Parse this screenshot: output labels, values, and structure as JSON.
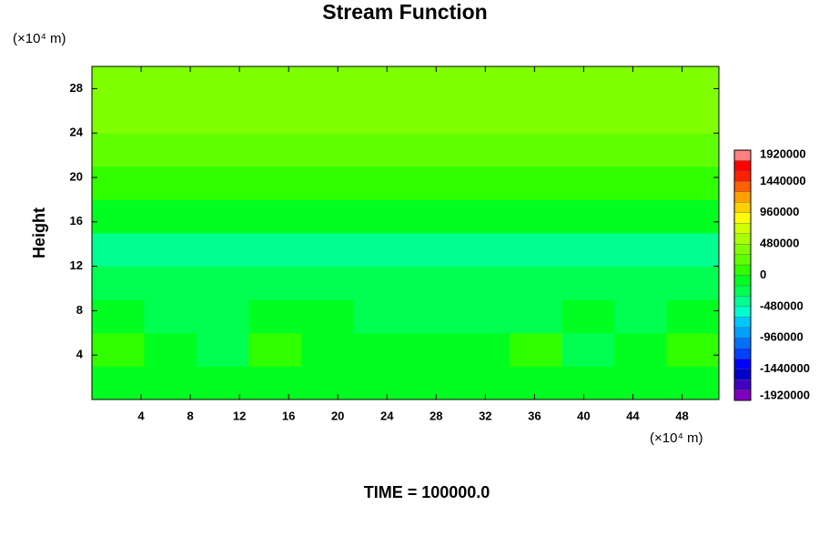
{
  "chart_data": {
    "type": "contour",
    "title": "Stream Function",
    "y_label": "Height",
    "y_unit": "(×10⁴ m)",
    "x_unit": "(×10⁴ m)",
    "footer": "TIME = 100000.0",
    "xlim": [
      0,
      51
    ],
    "ylim": [
      0,
      30
    ],
    "xticks": [
      4,
      8,
      12,
      16,
      20,
      24,
      28,
      32,
      36,
      40,
      44,
      48
    ],
    "yticks": [
      4,
      8,
      12,
      16,
      20,
      24,
      28
    ],
    "clim": [
      -1920000,
      1920000
    ],
    "clevel_step": 160000,
    "colorbar_ticks": [
      1920000,
      1440000,
      960000,
      480000,
      0,
      -480000,
      -960000,
      -1440000,
      -1920000
    ],
    "colors": [
      "#7f00bf",
      "#4000c0",
      "#0000c8",
      "#0000ff",
      "#0040ff",
      "#0070ff",
      "#00a0ff",
      "#00c8ff",
      "#00ffd0",
      "#00ff90",
      "#00ff50",
      "#00ff20",
      "#30ff00",
      "#60ff00",
      "#80ff00",
      "#a8ff00",
      "#d0ff00",
      "#ffff00",
      "#ffd000",
      "#ffa000",
      "#ff6000",
      "#ff2000",
      "#ff0000",
      "#ff8080"
    ],
    "field": [
      [
        -80000,
        -80000,
        -160000,
        -80000,
        -80000,
        -80000,
        -80000,
        -80000,
        -80000,
        -80000,
        -160000,
        -80000
      ],
      [
        80000,
        -80000,
        -240000,
        80000,
        -80000,
        -80000,
        -80000,
        -80000,
        80000,
        -320000,
        -80000,
        80000
      ],
      [
        -160000,
        -320000,
        -240000,
        -160000,
        -160000,
        -240000,
        -240000,
        -320000,
        -240000,
        -160000,
        -240000,
        -160000
      ],
      [
        -320000,
        -320000,
        -240000,
        -240000,
        -320000,
        -320000,
        -320000,
        -320000,
        -320000,
        -320000,
        -320000,
        -320000
      ],
      [
        -400000,
        -400000,
        -400000,
        -400000,
        -400000,
        -400000,
        -400000,
        -400000,
        -400000,
        -400000,
        -400000,
        -400000
      ],
      [
        -160000,
        -160000,
        -160000,
        -160000,
        -160000,
        -160000,
        -160000,
        -160000,
        -160000,
        -160000,
        -160000,
        -160000
      ],
      [
        80000,
        80000,
        80000,
        80000,
        80000,
        80000,
        80000,
        80000,
        80000,
        80000,
        80000,
        80000
      ],
      [
        240000,
        240000,
        240000,
        240000,
        240000,
        240000,
        240000,
        240000,
        240000,
        240000,
        240000,
        240000
      ],
      [
        400000,
        400000,
        400000,
        400000,
        400000,
        400000,
        400000,
        400000,
        400000,
        400000,
        400000,
        400000
      ],
      [
        400000,
        400000,
        400000,
        400000,
        400000,
        400000,
        400000,
        400000,
        400000,
        400000,
        400000,
        400000
      ]
    ]
  }
}
